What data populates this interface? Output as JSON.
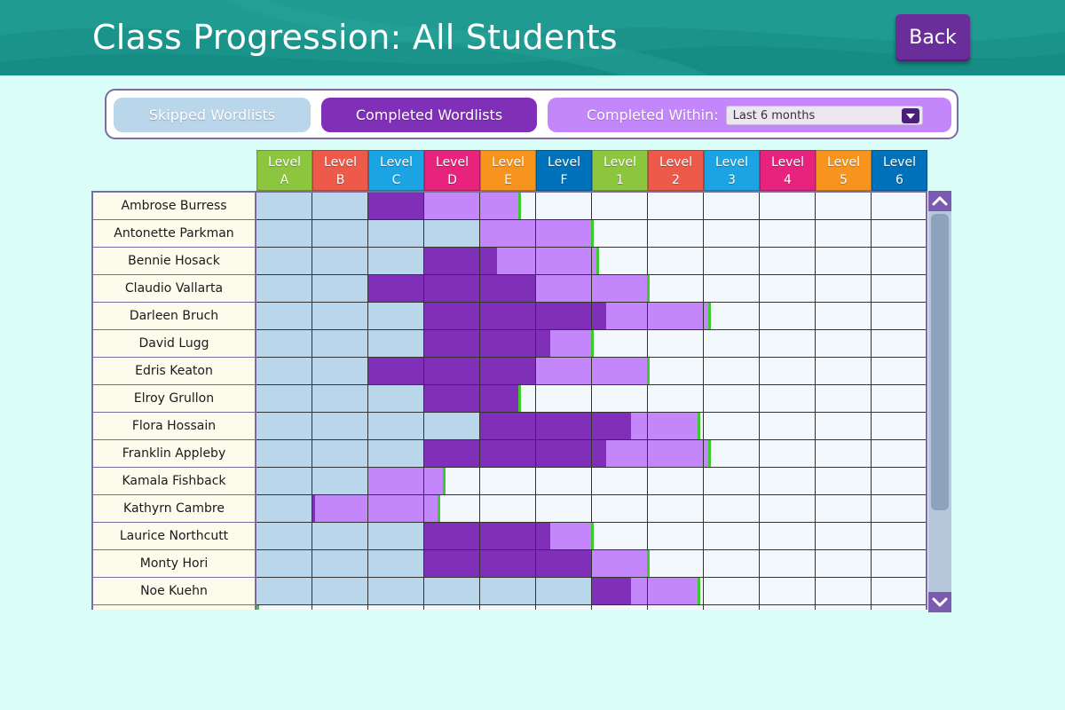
{
  "header": {
    "title": "Class Progression: All Students",
    "back_label": "Back"
  },
  "filters": {
    "skipped_label": "Skipped Wordlists",
    "completed_label": "Completed Wordlists",
    "within_label": "Completed Within:",
    "within_value": "Last 6 months"
  },
  "colors": {
    "skipped": "#b9d6ea",
    "completed": "#7f2fb8",
    "within": "#c487fb",
    "marker": "#3cc92e",
    "empty": "#f3f8fd"
  },
  "levels": [
    {
      "line1": "Level",
      "line2": "A",
      "color": "#8cc63f"
    },
    {
      "line1": "Level",
      "line2": "B",
      "color": "#ee5a4a"
    },
    {
      "line1": "Level",
      "line2": "C",
      "color": "#1ba3e3"
    },
    {
      "line1": "Level",
      "line2": "D",
      "color": "#e8237e"
    },
    {
      "line1": "Level",
      "line2": "E",
      "color": "#f7941d"
    },
    {
      "line1": "Level",
      "line2": "F",
      "color": "#0072bb"
    },
    {
      "line1": "Level",
      "line2": "1",
      "color": "#8cc63f"
    },
    {
      "line1": "Level",
      "line2": "2",
      "color": "#ee5a4a"
    },
    {
      "line1": "Level",
      "line2": "3",
      "color": "#1ba3e3"
    },
    {
      "line1": "Level",
      "line2": "4",
      "color": "#e8237e"
    },
    {
      "line1": "Level",
      "line2": "5",
      "color": "#f7941d"
    },
    {
      "line1": "Level",
      "line2": "6",
      "color": "#0072bb"
    }
  ],
  "students": [
    {
      "name": "Ambrose Burress",
      "skipped": 2,
      "completed": 3,
      "within": 4.7
    },
    {
      "name": "Antonette Parkman",
      "skipped": 4,
      "completed": 4,
      "within": 6
    },
    {
      "name": "Bennie Hosack",
      "skipped": 3,
      "completed": 4.3,
      "within": 6.1
    },
    {
      "name": "Claudio Vallarta",
      "skipped": 2,
      "completed": 5,
      "within": 7
    },
    {
      "name": "Darleen Bruch",
      "skipped": 3,
      "completed": 6.25,
      "within": 8.1
    },
    {
      "name": "David Lugg",
      "skipped": 3,
      "completed": 5.25,
      "within": 6
    },
    {
      "name": "Edris Keaton",
      "skipped": 2,
      "completed": 5,
      "within": 7
    },
    {
      "name": "Elroy Grullon",
      "skipped": 3,
      "completed": 4.7,
      "within": 4.7
    },
    {
      "name": "Flora Hossain",
      "skipped": 4,
      "completed": 6.7,
      "within": 7.9
    },
    {
      "name": "Franklin Appleby",
      "skipped": 3,
      "completed": 6.25,
      "within": 8.1
    },
    {
      "name": "Kamala Fishback",
      "skipped": 2,
      "completed": 2,
      "within": 3.35
    },
    {
      "name": "Kathyrn Cambre",
      "skipped": 1,
      "completed": 1.05,
      "within": 3.25
    },
    {
      "name": "Laurice Northcutt",
      "skipped": 3,
      "completed": 5.25,
      "within": 6
    },
    {
      "name": "Monty Hori",
      "skipped": 3,
      "completed": 6,
      "within": 7
    },
    {
      "name": "Noe Kuehn",
      "skipped": 6,
      "completed": 6.7,
      "within": 7.9
    }
  ]
}
